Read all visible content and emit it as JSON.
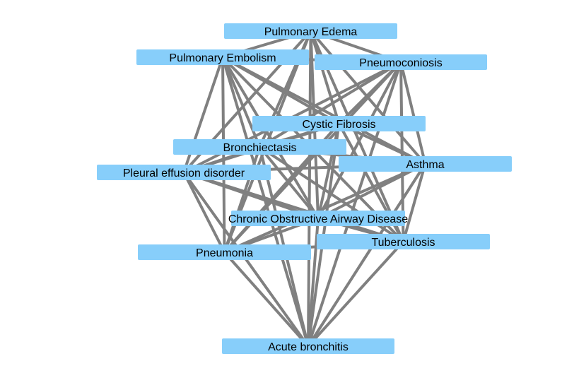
{
  "colors": {
    "node_fill": "#87CEFA",
    "edge": "#808080",
    "text": "#000000",
    "background": "#ffffff"
  },
  "nodes": [
    {
      "id": "pulmonary-edema",
      "label": "Pulmonary Edema"
    },
    {
      "id": "pulmonary-embolism",
      "label": "Pulmonary Embolism"
    },
    {
      "id": "pneumoconiosis",
      "label": "Pneumoconiosis"
    },
    {
      "id": "cystic-fibrosis",
      "label": "Cystic Fibrosis"
    },
    {
      "id": "bronchiectasis",
      "label": "Bronchiectasis"
    },
    {
      "id": "asthma",
      "label": "Asthma"
    },
    {
      "id": "pleural-effusion",
      "label": "Pleural effusion disorder"
    },
    {
      "id": "copd",
      "label": "Chronic Obstructive Airway Disease"
    },
    {
      "id": "tuberculosis",
      "label": "Tuberculosis"
    },
    {
      "id": "pneumonia",
      "label": "Pneumonia"
    },
    {
      "id": "acute-bronchitis",
      "label": "Acute bronchitis"
    }
  ],
  "edges": [
    [
      "pulmonary-edema",
      "pulmonary-embolism"
    ],
    [
      "pulmonary-edema",
      "pneumoconiosis"
    ],
    [
      "pulmonary-edema",
      "cystic-fibrosis"
    ],
    [
      "pulmonary-edema",
      "bronchiectasis"
    ],
    [
      "pulmonary-edema",
      "asthma"
    ],
    [
      "pulmonary-edema",
      "pleural-effusion"
    ],
    [
      "pulmonary-edema",
      "copd"
    ],
    [
      "pulmonary-edema",
      "tuberculosis"
    ],
    [
      "pulmonary-edema",
      "pneumonia"
    ],
    [
      "pulmonary-edema",
      "acute-bronchitis"
    ],
    [
      "pulmonary-embolism",
      "pneumoconiosis"
    ],
    [
      "pulmonary-embolism",
      "cystic-fibrosis"
    ],
    [
      "pulmonary-embolism",
      "bronchiectasis"
    ],
    [
      "pulmonary-embolism",
      "asthma"
    ],
    [
      "pulmonary-embolism",
      "pleural-effusion"
    ],
    [
      "pulmonary-embolism",
      "copd"
    ],
    [
      "pulmonary-embolism",
      "tuberculosis"
    ],
    [
      "pulmonary-embolism",
      "pneumonia"
    ],
    [
      "pulmonary-embolism",
      "acute-bronchitis"
    ],
    [
      "pneumoconiosis",
      "cystic-fibrosis"
    ],
    [
      "pneumoconiosis",
      "bronchiectasis"
    ],
    [
      "pneumoconiosis",
      "asthma"
    ],
    [
      "pneumoconiosis",
      "pleural-effusion"
    ],
    [
      "pneumoconiosis",
      "copd"
    ],
    [
      "pneumoconiosis",
      "tuberculosis"
    ],
    [
      "pneumoconiosis",
      "pneumonia"
    ],
    [
      "pneumoconiosis",
      "acute-bronchitis"
    ],
    [
      "cystic-fibrosis",
      "bronchiectasis"
    ],
    [
      "cystic-fibrosis",
      "asthma"
    ],
    [
      "cystic-fibrosis",
      "pleural-effusion"
    ],
    [
      "cystic-fibrosis",
      "copd"
    ],
    [
      "cystic-fibrosis",
      "tuberculosis"
    ],
    [
      "cystic-fibrosis",
      "pneumonia"
    ],
    [
      "cystic-fibrosis",
      "acute-bronchitis"
    ],
    [
      "bronchiectasis",
      "asthma"
    ],
    [
      "bronchiectasis",
      "pleural-effusion"
    ],
    [
      "bronchiectasis",
      "copd"
    ],
    [
      "bronchiectasis",
      "tuberculosis"
    ],
    [
      "bronchiectasis",
      "pneumonia"
    ],
    [
      "bronchiectasis",
      "acute-bronchitis"
    ],
    [
      "asthma",
      "pleural-effusion"
    ],
    [
      "asthma",
      "copd"
    ],
    [
      "asthma",
      "tuberculosis"
    ],
    [
      "asthma",
      "pneumonia"
    ],
    [
      "asthma",
      "acute-bronchitis"
    ],
    [
      "pleural-effusion",
      "copd"
    ],
    [
      "pleural-effusion",
      "tuberculosis"
    ],
    [
      "pleural-effusion",
      "pneumonia"
    ],
    [
      "pleural-effusion",
      "acute-bronchitis"
    ],
    [
      "copd",
      "tuberculosis"
    ],
    [
      "copd",
      "pneumonia"
    ],
    [
      "copd",
      "acute-bronchitis"
    ],
    [
      "tuberculosis",
      "pneumonia"
    ],
    [
      "tuberculosis",
      "acute-bronchitis"
    ],
    [
      "pneumonia",
      "acute-bronchitis"
    ]
  ]
}
